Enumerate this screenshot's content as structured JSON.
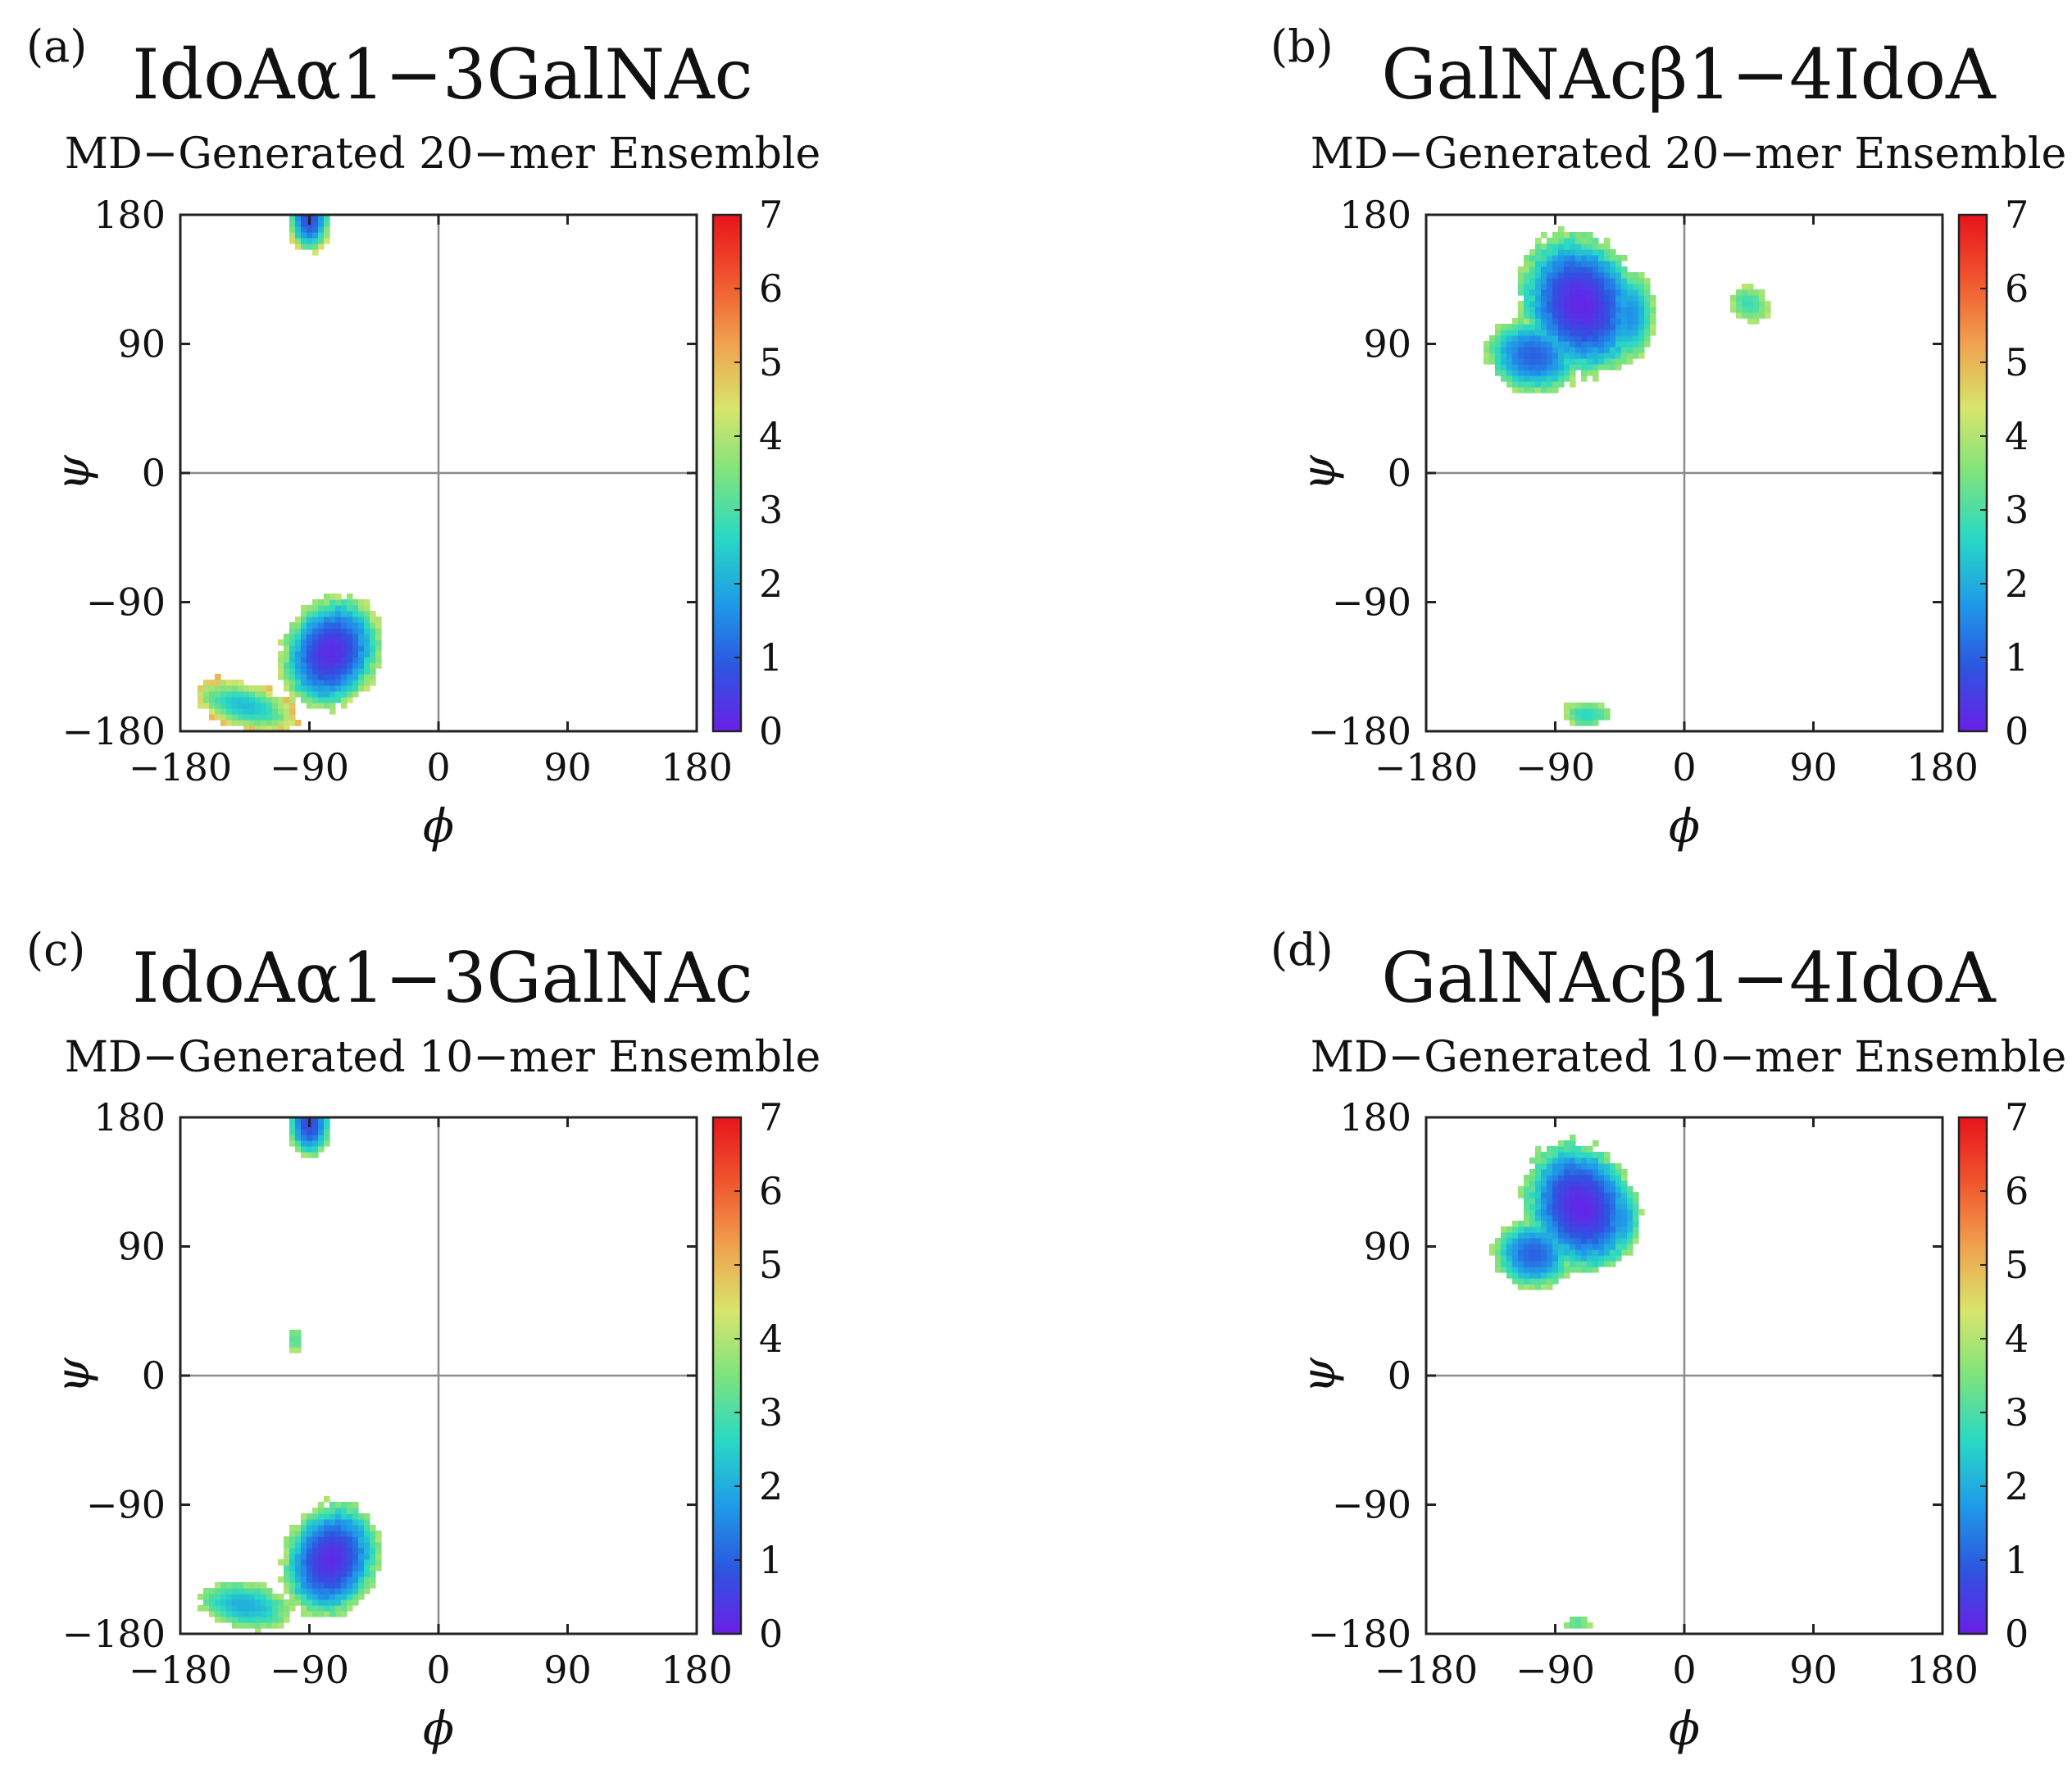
{
  "figure": {
    "colormap": [
      "#6a1fe8",
      "#2c56e0",
      "#1f9ce8",
      "#29d9c4",
      "#7ee37d",
      "#d8e56c",
      "#f0a24e",
      "#f0552e",
      "#e8141b"
    ],
    "axis_color": "#222222",
    "guide_line_color": "#8c8c8c"
  },
  "chart_data": [
    {
      "type": "heatmap",
      "panel_label": "(a)",
      "title": "IdoAα1−3GalNAc",
      "subtitle": "MD−Generated 20−mer Ensemble",
      "xlabel": "ϕ",
      "ylabel": "ψ",
      "xlim": [
        -180,
        180
      ],
      "ylim": [
        -180,
        180
      ],
      "xticks": [
        "−180",
        "−90",
        "0",
        "90",
        "180"
      ],
      "yticks": [
        "180",
        "90",
        "0",
        "−90",
        "−180"
      ],
      "colorbar": {
        "min": 0,
        "max": 7,
        "ticks": [
          "0",
          "1",
          "2",
          "3",
          "4",
          "5",
          "6",
          "7"
        ]
      },
      "grid": false,
      "regions": [
        {
          "phi": -90,
          "psi": 178,
          "rx": 15,
          "ry": 25,
          "rot": 0,
          "min": 0.6,
          "edge": 4.6,
          "bump": 0.12
        },
        {
          "phi": -75,
          "psi": -125,
          "rx": 34,
          "ry": 42,
          "rot": -25,
          "min": 0.2,
          "edge": 4.2,
          "bump": 0.12
        },
        {
          "phi": -135,
          "psi": -162,
          "rx": 38,
          "ry": 16,
          "rot": -15,
          "min": 2.2,
          "edge": 5.0,
          "bump": 0.18
        }
      ]
    },
    {
      "type": "heatmap",
      "panel_label": "(b)",
      "title": "GalNAcβ1−4IdoA",
      "subtitle": "MD−Generated 20−mer Ensemble",
      "xlabel": "ϕ",
      "ylabel": "ψ",
      "xlim": [
        -180,
        180
      ],
      "ylim": [
        -180,
        180
      ],
      "xticks": [
        "−180",
        "−90",
        "0",
        "90",
        "180"
      ],
      "yticks": [
        "180",
        "90",
        "0",
        "−90",
        "−180"
      ],
      "colorbar": {
        "min": 0,
        "max": 7,
        "ticks": [
          "0",
          "1",
          "2",
          "3",
          "4",
          "5",
          "6",
          "7"
        ]
      },
      "grid": false,
      "regions": [
        {
          "phi": -72,
          "psi": 118,
          "rx": 42,
          "ry": 52,
          "rot": 25,
          "min": 0.1,
          "edge": 3.9,
          "bump": 0.14
        },
        {
          "phi": -105,
          "psi": 82,
          "rx": 34,
          "ry": 26,
          "rot": -10,
          "min": 1.0,
          "edge": 4.0,
          "bump": 0.14
        },
        {
          "phi": -38,
          "psi": 110,
          "rx": 18,
          "ry": 32,
          "rot": 0,
          "min": 1.6,
          "edge": 4.1,
          "bump": 0.14
        },
        {
          "phi": 45,
          "psi": 118,
          "rx": 14,
          "ry": 12,
          "rot": -30,
          "min": 2.8,
          "edge": 4.2,
          "bump": 0.3
        },
        {
          "phi": -68,
          "psi": -168,
          "rx": 16,
          "ry": 9,
          "rot": 0,
          "min": 2.6,
          "edge": 4.0,
          "bump": 0.3
        }
      ]
    },
    {
      "type": "heatmap",
      "panel_label": "(c)",
      "title": "IdoAα1−3GalNAc",
      "subtitle": "MD−Generated 10−mer Ensemble",
      "xlabel": "ϕ",
      "ylabel": "ψ",
      "xlim": [
        -180,
        180
      ],
      "ylim": [
        -180,
        180
      ],
      "xticks": [
        "−180",
        "−90",
        "0",
        "90",
        "180"
      ],
      "yticks": [
        "180",
        "90",
        "0",
        "−90",
        "−180"
      ],
      "colorbar": {
        "min": 0,
        "max": 7,
        "ticks": [
          "0",
          "1",
          "2",
          "3",
          "4",
          "5",
          "6",
          "7"
        ]
      },
      "grid": false,
      "regions": [
        {
          "phi": -90,
          "psi": 176,
          "rx": 15,
          "ry": 24,
          "rot": 0,
          "min": 0.6,
          "edge": 4.0,
          "bump": 0.12
        },
        {
          "phi": -75,
          "psi": -128,
          "rx": 33,
          "ry": 42,
          "rot": -20,
          "min": 0.2,
          "edge": 4.0,
          "bump": 0.12
        },
        {
          "phi": -135,
          "psi": -160,
          "rx": 33,
          "ry": 16,
          "rot": -10,
          "min": 2.0,
          "edge": 4.0,
          "bump": 0.18
        },
        {
          "phi": -100,
          "psi": 25,
          "rx": 5,
          "ry": 8,
          "rot": 0,
          "min": 3.0,
          "edge": 4.0,
          "bump": 0.4
        }
      ]
    },
    {
      "type": "heatmap",
      "panel_label": "(d)",
      "title": "GalNAcβ1−4IdoA",
      "subtitle": "MD−Generated 10−mer Ensemble",
      "xlabel": "ϕ",
      "ylabel": "ψ",
      "xlim": [
        -180,
        180
      ],
      "ylim": [
        -180,
        180
      ],
      "xticks": [
        "−180",
        "−90",
        "0",
        "90",
        "180"
      ],
      "yticks": [
        "180",
        "90",
        "0",
        "−90",
        "−180"
      ],
      "colorbar": {
        "min": 0,
        "max": 7,
        "ticks": [
          "0",
          "1",
          "2",
          "3",
          "4",
          "5",
          "6",
          "7"
        ]
      },
      "grid": false,
      "regions": [
        {
          "phi": -72,
          "psi": 118,
          "rx": 38,
          "ry": 48,
          "rot": 25,
          "min": 0.1,
          "edge": 3.8,
          "bump": 0.14
        },
        {
          "phi": -105,
          "psi": 85,
          "rx": 28,
          "ry": 24,
          "rot": -10,
          "min": 1.0,
          "edge": 3.9,
          "bump": 0.14
        },
        {
          "phi": -45,
          "psi": 110,
          "rx": 15,
          "ry": 28,
          "rot": 0,
          "min": 1.6,
          "edge": 4.0,
          "bump": 0.14
        },
        {
          "phi": -75,
          "psi": -172,
          "rx": 8,
          "ry": 5,
          "rot": 0,
          "min": 3.0,
          "edge": 4.0,
          "bump": 0.4
        }
      ]
    }
  ]
}
